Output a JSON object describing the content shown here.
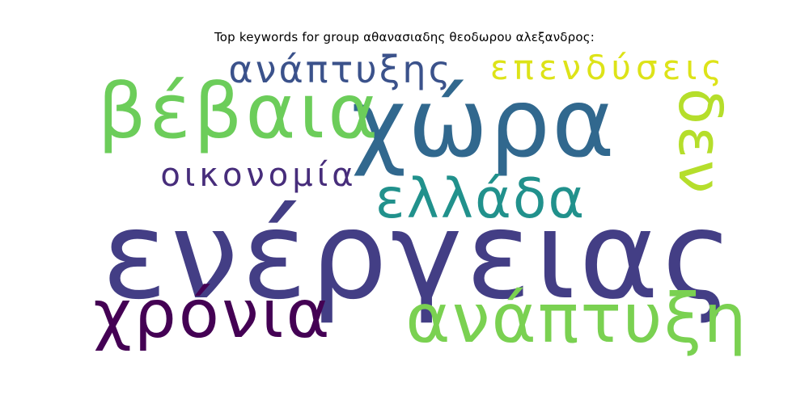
{
  "chart_data": {
    "type": "wordcloud",
    "title": "Top keywords for group αθανασιαδης θεοδωρου αλεξανδρος:",
    "words": [
      {
        "text": "ενέργειας",
        "weight": 1.0,
        "color": "#433e85"
      },
      {
        "text": "χώρα",
        "weight": 0.87,
        "color": "#31688e"
      },
      {
        "text": "βέβαια",
        "weight": 0.7,
        "color": "#6ccd5a"
      },
      {
        "text": "ανάπτυξη",
        "weight": 0.62,
        "color": "#7ad151"
      },
      {
        "text": "χρόνια",
        "weight": 0.6,
        "color": "#440154"
      },
      {
        "text": "ελλάδα",
        "weight": 0.55,
        "color": "#21918c"
      },
      {
        "text": "δεν",
        "weight": 0.5,
        "color": "#b5de2b"
      },
      {
        "text": "ανάπτυξης",
        "weight": 0.42,
        "color": "#3b528b"
      },
      {
        "text": "επενδύσεις",
        "weight": 0.38,
        "color": "#dde318"
      },
      {
        "text": "οικονομία",
        "weight": 0.36,
        "color": "#472d7b"
      }
    ]
  }
}
